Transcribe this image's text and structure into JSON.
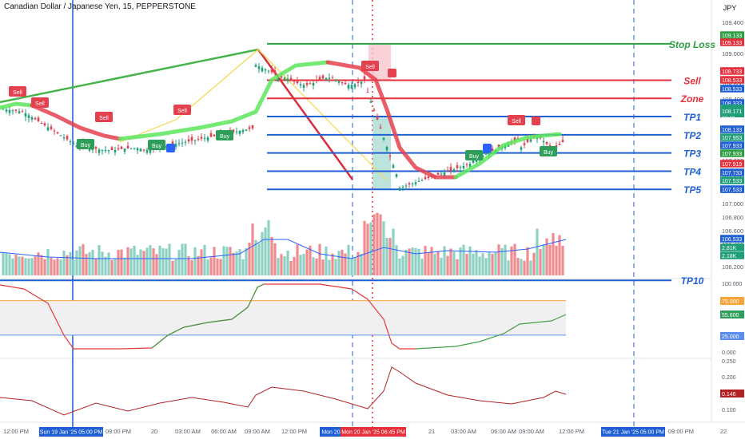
{
  "header": {
    "symbol_title": "Canadian Dollar / Japanese Yen, 15, PEPPERSTONE",
    "currency": "JPY"
  },
  "colors": {
    "green_line": "#2ea043",
    "red_line": "#e5303c",
    "blue_line": "#1f5fd6",
    "candle_up": "#1f9e78",
    "candle_down": "#e5404d",
    "volume_up": "#8ed1c3",
    "volume_down": "#f08c8f",
    "rsi_up": "#43a047",
    "rsi_down": "#e53935",
    "osc_line": "#b22222",
    "band_orange": "#f6a43a",
    "band_blue": "#5b8def"
  },
  "price_axis": {
    "ticks": [
      "109.400",
      "109.200",
      "109.000",
      "108.800",
      "108.600",
      "108.400",
      "108.200",
      "108.000",
      "107.800",
      "107.600",
      "107.400",
      "107.200",
      "107.000",
      "106.800",
      "106.600",
      "106.400",
      "106.200"
    ],
    "tags": [
      {
        "text": "109.133",
        "color": "#2ea043"
      },
      {
        "text": "109.133",
        "color": "#e5303c"
      },
      {
        "text": "108.733",
        "color": "#e5303c"
      },
      {
        "text": "108.533",
        "color": "#e5303c"
      },
      {
        "text": "108.533",
        "color": "#1f5fd6"
      },
      {
        "text": "108.333",
        "color": "#1f5fd6"
      },
      {
        "text": "108.171",
        "color": "#1f9e78",
        "sub": "03:43"
      },
      {
        "text": "108.133",
        "color": "#1f5fd6"
      },
      {
        "text": "107.953",
        "color": "#1f9e78"
      },
      {
        "text": "107.933",
        "color": "#1f5fd6"
      },
      {
        "text": "107.933",
        "color": "#2ea043"
      },
      {
        "text": "107.919",
        "color": "#e5303c"
      },
      {
        "text": "107.733",
        "color": "#1f5fd6"
      },
      {
        "text": "107.533",
        "color": "#1f9e78"
      },
      {
        "text": "107.533",
        "color": "#1f5fd6"
      },
      {
        "text": "106.533",
        "color": "#1f5fd6"
      },
      {
        "text": "2.81K",
        "color": "#1f9e78"
      },
      {
        "text": "2.18K",
        "color": "#1f9e78"
      }
    ]
  },
  "levels": [
    {
      "label": "Stop Loss",
      "price": 109.133,
      "color": "#2ea043"
    },
    {
      "label": "Sell",
      "price": 108.733,
      "color": "#e5303c"
    },
    {
      "label": "Zone",
      "price": 108.533,
      "color": "#e5303c"
    },
    {
      "label": "TP1",
      "price": 108.333,
      "color": "#1f5fd6"
    },
    {
      "label": "TP2",
      "price": 108.133,
      "color": "#1f5fd6"
    },
    {
      "label": "TP3",
      "price": 107.933,
      "color": "#1f5fd6"
    },
    {
      "label": "TP4",
      "price": 107.733,
      "color": "#1f5fd6"
    },
    {
      "label": "TP5",
      "price": 107.533,
      "color": "#1f5fd6"
    },
    {
      "label": "TP10",
      "price": 106.533,
      "color": "#1f5fd6"
    }
  ],
  "signals": [
    {
      "kind": "Sell"
    },
    {
      "kind": "Sell"
    },
    {
      "kind": "Sell"
    },
    {
      "kind": "Sell"
    },
    {
      "kind": "Sell"
    },
    {
      "kind": "Sell"
    },
    {
      "kind": "Buy"
    },
    {
      "kind": "Buy"
    },
    {
      "kind": "Buy"
    },
    {
      "kind": "Buy"
    },
    {
      "kind": "Buy"
    }
  ],
  "rsi_panel": {
    "ticks": [
      "100.000",
      "75.000",
      "55.600",
      "25.000",
      "0.000"
    ],
    "value": 55.6,
    "upper": 75,
    "lower": 25
  },
  "osc_panel": {
    "ticks": [
      "0.250",
      "0.200",
      "0.146",
      "0.100"
    ],
    "value": 0.146
  },
  "time_axis": {
    "labels": [
      "12:00 PM",
      "03:00 PM",
      "09:00 PM",
      "20",
      "03:00 AM",
      "06:00 AM",
      "09:00 AM",
      "12:00 PM",
      "21",
      "03:00 AM",
      "06:00 AM",
      "09:00 AM",
      "12:00 PM",
      "09:00 PM",
      "22"
    ],
    "highlights": [
      {
        "text": "Sun 19 Jan '25   05:00 PM",
        "color": "#1f5fd6"
      },
      {
        "text": "Mon 20",
        "color": "#1f5fd6"
      },
      {
        "text": "Mon 20 Jan '25   06:45 PM",
        "color": "#e5303c"
      },
      {
        "text": "Tue 21 Jan '25   05:00 PM",
        "color": "#1f5fd6"
      }
    ]
  }
}
